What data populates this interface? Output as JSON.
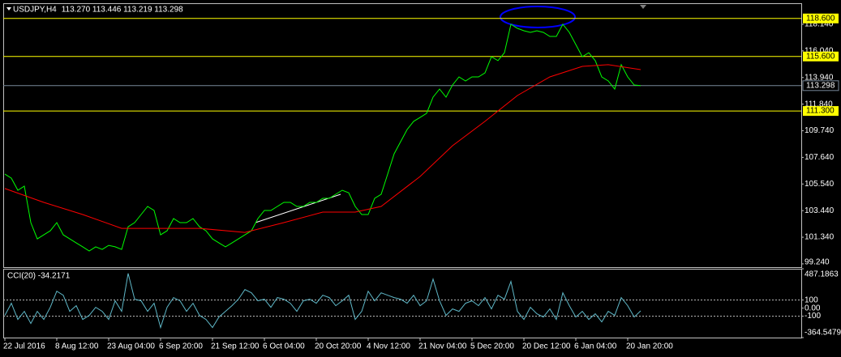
{
  "chart_data": [
    {
      "type": "line",
      "title": "USDJPY,H4",
      "quote": "113.270 113.446 113.219 113.298",
      "xlim": [
        -0.25,
        122.75
      ],
      "ylim": [
        98.98,
        119.8
      ],
      "yticks": [
        {
          "value": 118.14,
          "label": "118.140"
        },
        {
          "value": 116.04,
          "label": "116.040"
        },
        {
          "value": 113.94,
          "label": "113.940"
        },
        {
          "value": 111.84,
          "label": "111.840"
        },
        {
          "value": 109.74,
          "label": "109.740"
        },
        {
          "value": 107.64,
          "label": "107.640"
        },
        {
          "value": 105.54,
          "label": "105.540"
        },
        {
          "value": 103.44,
          "label": "103.440"
        },
        {
          "value": 101.34,
          "label": "101.340"
        },
        {
          "value": 99.24,
          "label": "99.240"
        }
      ],
      "xticks": [
        {
          "value": 0,
          "label": "22 Jul 2016"
        },
        {
          "value": 8,
          "label": "8 Aug 12:00"
        },
        {
          "value": 16,
          "label": "23 Aug 04:00"
        },
        {
          "value": 24,
          "label": "6 Sep 20:00"
        },
        {
          "value": 32,
          "label": "21 Sep 12:00"
        },
        {
          "value": 40,
          "label": "6 Oct 04:00"
        },
        {
          "value": 48,
          "label": "20 Oct 20:00"
        },
        {
          "value": 56,
          "label": "4 Nov 12:00"
        },
        {
          "value": 64,
          "label": "21 Nov 04:00"
        },
        {
          "value": 72,
          "label": "5 Dec 20:00"
        },
        {
          "value": 80,
          "label": "20 Dec 12:00"
        },
        {
          "value": 88,
          "label": "6 Jan 04:00"
        },
        {
          "value": 96,
          "label": "20 Jan 20:00"
        }
      ],
      "levels": [
        {
          "value": 118.6,
          "label": "118.600",
          "color": "#ffff00"
        },
        {
          "value": 115.6,
          "label": "115.600",
          "color": "#ffff00"
        },
        {
          "value": 111.3,
          "label": "111.300",
          "color": "#ffff00"
        }
      ],
      "current": {
        "value": 113.298,
        "label": "113.298",
        "color": "#778899"
      },
      "series": [
        {
          "color": "#00ff00",
          "x": [
            0,
            1,
            2,
            3,
            4,
            5,
            6,
            7,
            8,
            9,
            10,
            11,
            12,
            13,
            14,
            15,
            16,
            17,
            18,
            19,
            20,
            21,
            22,
            23,
            24,
            25,
            26,
            27,
            28,
            29,
            30,
            31,
            32,
            33,
            34,
            35,
            36,
            37,
            38,
            39,
            40,
            41,
            42,
            43,
            44,
            45,
            46,
            47,
            48,
            49,
            50,
            51,
            52,
            53,
            54,
            55,
            56,
            57,
            58,
            59,
            60,
            61,
            62,
            63,
            64,
            65,
            66,
            67,
            68,
            69,
            70,
            71,
            72,
            73,
            74,
            75,
            76,
            77,
            78,
            79,
            80,
            81,
            82,
            83,
            84,
            85,
            86,
            87,
            88,
            89,
            90,
            91,
            92,
            93,
            94,
            95,
            96,
            97,
            98
          ],
          "values": [
            106.32,
            106.0,
            105.05,
            105.37,
            102.49,
            101.21,
            101.53,
            101.85,
            102.49,
            101.53,
            101.21,
            100.89,
            100.58,
            100.26,
            100.58,
            100.38,
            100.7,
            100.58,
            100.38,
            102.17,
            102.49,
            103.13,
            103.77,
            103.45,
            101.53,
            101.85,
            102.81,
            102.49,
            102.49,
            102.81,
            102.17,
            101.85,
            101.21,
            100.89,
            100.58,
            100.89,
            101.21,
            101.53,
            101.85,
            102.81,
            103.45,
            103.45,
            103.77,
            104.09,
            104.09,
            103.77,
            103.77,
            104.09,
            104.09,
            104.41,
            104.41,
            104.73,
            105.05,
            104.85,
            103.77,
            103.13,
            103.13,
            104.41,
            104.73,
            106.32,
            107.92,
            108.88,
            109.84,
            110.48,
            110.79,
            111.11,
            112.39,
            113.03,
            112.39,
            113.35,
            113.99,
            113.67,
            113.99,
            113.99,
            114.31,
            115.58,
            115.27,
            115.9,
            118.14,
            117.82,
            117.63,
            117.5,
            117.63,
            117.5,
            117.18,
            117.18,
            118.14,
            117.5,
            116.54,
            115.58,
            115.9,
            115.27,
            113.99,
            113.67,
            113.03,
            114.95,
            113.99,
            113.35,
            113.3
          ]
        },
        {
          "color": "#ff0000",
          "x": [
            0,
            6,
            12,
            18,
            24,
            30,
            37,
            43,
            49,
            54,
            58,
            64,
            69,
            74,
            79,
            84,
            89,
            93,
            98
          ],
          "values": [
            105.18,
            104.09,
            103.13,
            102.04,
            102.04,
            102.04,
            101.72,
            102.49,
            103.32,
            103.32,
            103.77,
            106.13,
            108.56,
            110.48,
            112.52,
            113.99,
            114.82,
            114.95,
            114.56
          ]
        }
      ]
    },
    {
      "type": "line",
      "title": "CCI(20) -34.2171",
      "ylim": [
        -364.5479,
        487.1863
      ],
      "yticks": [
        487.1863,
        100,
        {
          "value": 0,
          "label": "0.00"
        },
        -100,
        -364.5479
      ],
      "level_lines": [
        100,
        -100
      ],
      "series": [
        {
          "color": "#5fb8c8",
          "x": [
            0,
            1,
            2,
            3,
            4,
            5,
            6,
            7,
            8,
            9,
            10,
            11,
            12,
            13,
            14,
            15,
            16,
            17,
            18,
            19,
            20,
            21,
            22,
            23,
            24,
            25,
            26,
            27,
            28,
            29,
            30,
            31,
            32,
            33,
            34,
            35,
            36,
            37,
            38,
            39,
            40,
            41,
            42,
            43,
            44,
            45,
            46,
            47,
            48,
            49,
            50,
            51,
            52,
            53,
            54,
            55,
            56,
            57,
            58,
            59,
            60,
            61,
            62,
            63,
            64,
            65,
            66,
            67,
            68,
            69,
            70,
            71,
            72,
            73,
            74,
            75,
            76,
            77,
            78,
            79,
            80,
            81,
            82,
            83,
            84,
            85,
            86,
            87,
            88,
            89,
            90,
            91,
            92,
            93,
            94,
            95,
            96,
            97,
            98
          ],
          "values": [
            -90,
            60,
            -140,
            -40,
            -190,
            -40,
            -140,
            10,
            210,
            160,
            -40,
            30,
            -140,
            -90,
            10,
            -40,
            -140,
            90,
            -40,
            430,
            110,
            90,
            -40,
            60,
            -240,
            10,
            130,
            90,
            -40,
            60,
            -90,
            -140,
            -240,
            -110,
            -40,
            30,
            110,
            230,
            190,
            90,
            110,
            10,
            130,
            110,
            60,
            -40,
            90,
            110,
            60,
            160,
            130,
            30,
            90,
            160,
            -140,
            -40,
            210,
            90,
            190,
            160,
            130,
            110,
            60,
            160,
            30,
            90,
            360,
            90,
            -90,
            -10,
            -40,
            60,
            90,
            30,
            130,
            -10,
            160,
            110,
            330,
            -40,
            -140,
            10,
            -70,
            -110,
            -10,
            -140,
            190,
            30,
            -110,
            -40,
            -140,
            -70,
            -170,
            -40,
            -90,
            130,
            30,
            -110,
            -34.2171
          ]
        }
      ]
    }
  ]
}
